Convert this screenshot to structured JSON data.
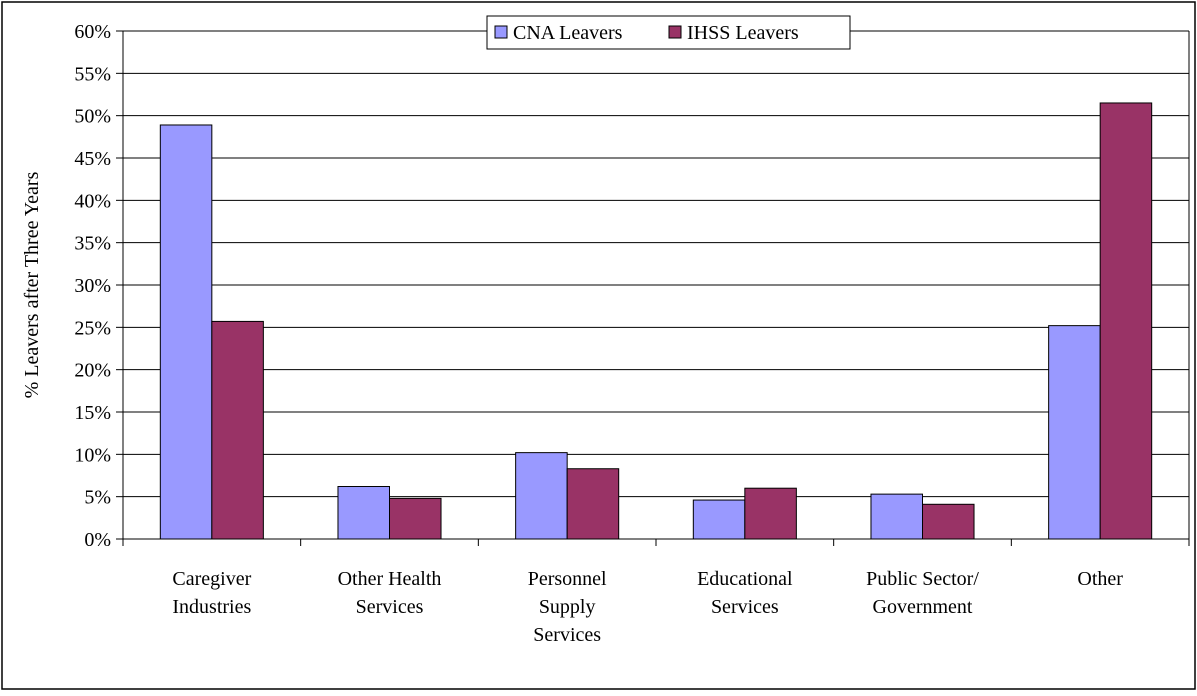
{
  "chart_data": {
    "type": "bar",
    "title": "",
    "xlabel": "",
    "ylabel": "% Leavers after Three Years",
    "ylim": [
      0,
      60
    ],
    "yticks": [
      "0%",
      "5%",
      "10%",
      "15%",
      "20%",
      "25%",
      "30%",
      "35%",
      "40%",
      "45%",
      "50%",
      "55%",
      "60%"
    ],
    "grid": true,
    "legend_position": "top-center",
    "categories": [
      [
        "Caregiver",
        "Industries"
      ],
      [
        "Other Health",
        "Services"
      ],
      [
        "Personnel",
        "Supply",
        "Services"
      ],
      [
        "Educational",
        "Services"
      ],
      [
        "Public Sector/",
        "Government"
      ],
      [
        "Other"
      ]
    ],
    "series": [
      {
        "name": "CNA Leavers",
        "color": "#9999ff",
        "values": [
          48.9,
          6.2,
          10.2,
          4.6,
          5.3,
          25.2
        ]
      },
      {
        "name": "IHSS Leavers",
        "color": "#993366",
        "values": [
          25.7,
          4.8,
          8.3,
          6.0,
          4.1,
          51.5
        ]
      }
    ]
  }
}
